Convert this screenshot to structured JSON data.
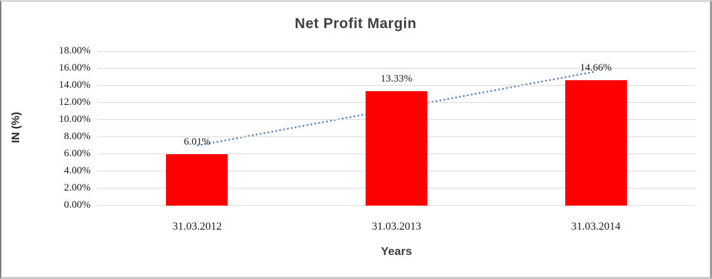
{
  "chart_data": {
    "type": "bar",
    "title": "Net Profit Margin",
    "xlabel": "Years",
    "ylabel": "IN (%)",
    "categories": [
      "31.03.2012",
      "31.03.2013",
      "31.03.2014"
    ],
    "values": [
      6.01,
      13.33,
      14.66
    ],
    "data_labels": [
      "6.01%",
      "13.33%",
      "14.66%"
    ],
    "ylim": [
      0,
      18
    ],
    "ytick_step": 2,
    "ytick_labels": [
      "0.00%",
      "2.00%",
      "4.00%",
      "6.00%",
      "8.00%",
      "10.00%",
      "12.00%",
      "14.00%",
      "16.00%",
      "18.00%"
    ],
    "grid": true,
    "legend": "none",
    "bar_color": "#FF0000",
    "gridline_color": "#D9D9D9",
    "title_color": "#404040",
    "text_color": "#1A1A1A",
    "trendline": {
      "type": "linear",
      "style": "dotted",
      "color": "#4F81BD"
    }
  }
}
